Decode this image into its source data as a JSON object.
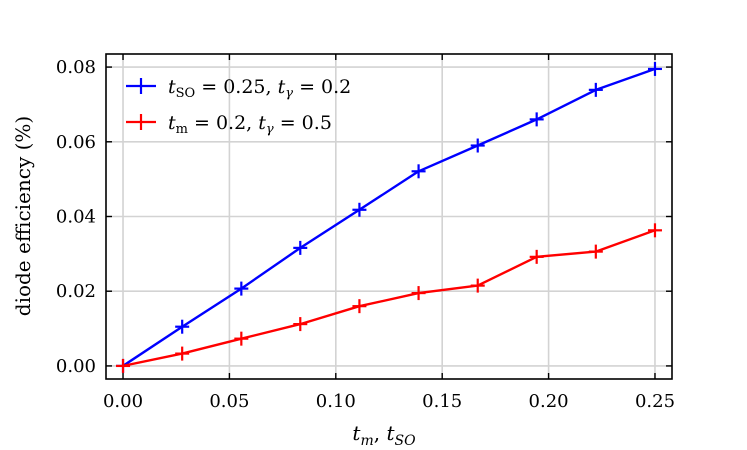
{
  "chart_data": {
    "type": "line",
    "ylabel": "diode efficiency (%)",
    "xlabel": "t_m, t_SO",
    "xlim": [
      -0.008,
      0.258
    ],
    "ylim": [
      -0.0035,
      0.0835
    ],
    "xticks": [
      0.0,
      0.05,
      0.1,
      0.15,
      0.2,
      0.25
    ],
    "xtick_labels": [
      "0.00",
      "0.05",
      "0.10",
      "0.15",
      "0.20",
      "0.25"
    ],
    "yticks": [
      0.0,
      0.02,
      0.04,
      0.06,
      0.08
    ],
    "ytick_labels": [
      "0.00",
      "0.02",
      "0.04",
      "0.06",
      "0.08"
    ],
    "grid": true,
    "legend_position": "top-left",
    "x": [
      0.0,
      0.0278,
      0.0556,
      0.0833,
      0.1111,
      0.1389,
      0.1667,
      0.1944,
      0.2222,
      0.25
    ],
    "series": [
      {
        "name": "t_SO = 0.25, t_γ = 0.2",
        "color": "#0000ff",
        "marker": "plus",
        "values": [
          0.0,
          0.0105,
          0.0207,
          0.0316,
          0.0418,
          0.0521,
          0.059,
          0.066,
          0.0739,
          0.0795
        ]
      },
      {
        "name": "t_m = 0.2, t_γ = 0.5",
        "color": "#ff0000",
        "marker": "plus",
        "values": [
          0.0,
          0.0033,
          0.0073,
          0.0112,
          0.016,
          0.0195,
          0.0215,
          0.0292,
          0.0306,
          0.0363
        ]
      }
    ]
  }
}
